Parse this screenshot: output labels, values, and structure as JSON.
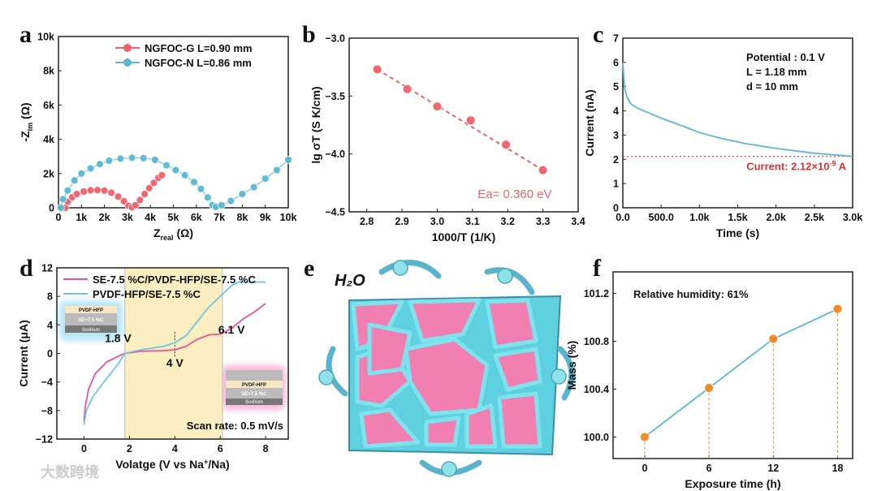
{
  "colors": {
    "red": "#f0626a",
    "blue": "#5bb8d4",
    "pink": "#ec4f9b",
    "lightblue": "#6cc6e6",
    "orange": "#f4841f",
    "shade": "#fbeec0",
    "dash_red": "#e23030"
  },
  "watermark": "大数跨境",
  "chart_data": [
    {
      "panel": "a",
      "type": "scatter",
      "xlabel": "Z",
      "xlabel_sub": "real",
      "xlabel_unit": " (Ω)",
      "ylabel": "-Z",
      "ylabel_sub": "im",
      "ylabel_unit": " (Ω)",
      "xlim": [
        0,
        10000
      ],
      "ylim": [
        0,
        10000
      ],
      "xticks": [
        [
          0,
          "0"
        ],
        [
          1000,
          "1k"
        ],
        [
          2000,
          "2k"
        ],
        [
          3000,
          "3k"
        ],
        [
          4000,
          "4k"
        ],
        [
          5000,
          "5k"
        ],
        [
          6000,
          "6k"
        ],
        [
          7000,
          "7k"
        ],
        [
          8000,
          "8k"
        ],
        [
          9000,
          "9k"
        ],
        [
          10000,
          "10k"
        ]
      ],
      "yticks": [
        [
          0,
          "0"
        ],
        [
          2000,
          "2k"
        ],
        [
          4000,
          "4k"
        ],
        [
          6000,
          "6k"
        ],
        [
          8000,
          "8k"
        ],
        [
          10000,
          "10k"
        ]
      ],
      "legend": "top-right",
      "series": [
        {
          "name": "NGFOC-G  L=0.90 mm",
          "color": "#f0626a",
          "points": [
            [
              300,
              0
            ],
            [
              400,
              350
            ],
            [
              600,
              620
            ],
            [
              800,
              800
            ],
            [
              1100,
              950
            ],
            [
              1400,
              1020
            ],
            [
              1700,
              1030
            ],
            [
              2000,
              1000
            ],
            [
              2300,
              880
            ],
            [
              2600,
              650
            ],
            [
              2850,
              380
            ],
            [
              3050,
              120
            ],
            [
              3200,
              30
            ],
            [
              3350,
              150
            ],
            [
              3550,
              450
            ],
            [
              3750,
              800
            ],
            [
              3950,
              1150
            ],
            [
              4150,
              1450
            ],
            [
              4350,
              1750
            ],
            [
              4500,
              1900
            ]
          ]
        },
        {
          "name": "NGFOC-N  L=0.86 mm",
          "color": "#5bb8d4",
          "points": [
            [
              100,
              0
            ],
            [
              200,
              500
            ],
            [
              400,
              1000
            ],
            [
              700,
              1600
            ],
            [
              1000,
              2000
            ],
            [
              1400,
              2300
            ],
            [
              1800,
              2550
            ],
            [
              2200,
              2750
            ],
            [
              2700,
              2870
            ],
            [
              3200,
              2920
            ],
            [
              3700,
              2900
            ],
            [
              4200,
              2800
            ],
            [
              4700,
              2480
            ],
            [
              5100,
              2200
            ],
            [
              5500,
              1900
            ],
            [
              5900,
              1500
            ],
            [
              6200,
              1100
            ],
            [
              6500,
              600
            ],
            [
              6700,
              150
            ],
            [
              6850,
              50
            ],
            [
              7100,
              150
            ],
            [
              7500,
              400
            ],
            [
              8000,
              800
            ],
            [
              8500,
              1200
            ],
            [
              9000,
              1700
            ],
            [
              9500,
              2200
            ],
            [
              10000,
              2800
            ]
          ]
        }
      ]
    },
    {
      "panel": "b",
      "type": "scatter",
      "xlabel": "1000/T (1/K)",
      "ylabel": "lg σT (S K/cm)",
      "xlim": [
        2.75,
        3.4
      ],
      "ylim": [
        -4.5,
        -3.0
      ],
      "xticks": [
        [
          2.8,
          "2.8"
        ],
        [
          2.9,
          "2.9"
        ],
        [
          3.0,
          "3.0"
        ],
        [
          3.1,
          "3.1"
        ],
        [
          3.2,
          "3.2"
        ],
        [
          3.3,
          "3.3"
        ],
        [
          3.4,
          "3.4"
        ]
      ],
      "yticks": [
        [
          -3.0,
          "−3.0"
        ],
        [
          -3.5,
          "−3.5"
        ],
        [
          -4.0,
          "−4.0"
        ],
        [
          -4.5,
          "−4.5"
        ]
      ],
      "annotation": "Ea= 0.360 eV",
      "series": [
        {
          "name": "data",
          "color": "#f0626a",
          "points": [
            [
              2.83,
              -3.27
            ],
            [
              2.915,
              -3.44
            ],
            [
              3.0,
              -3.59
            ],
            [
              3.095,
              -3.71
            ],
            [
              3.195,
              -3.92
            ],
            [
              3.3,
              -4.14
            ]
          ]
        }
      ],
      "fit": [
        [
          2.83,
          -3.27
        ],
        [
          3.3,
          -4.14
        ]
      ]
    },
    {
      "panel": "c",
      "type": "line",
      "xlabel": "Time (s)",
      "ylabel": "Current (nA)",
      "xlim": [
        0,
        3000
      ],
      "ylim": [
        0,
        7
      ],
      "xticks": [
        [
          0,
          "0.0"
        ],
        [
          500,
          "500.0"
        ],
        [
          1000,
          "1.0k"
        ],
        [
          1500,
          "1.5k"
        ],
        [
          2000,
          "2.0k"
        ],
        [
          2500,
          "2.5k"
        ],
        [
          3000,
          "3.0k"
        ]
      ],
      "yticks": [
        [
          0,
          "0"
        ],
        [
          1,
          "1"
        ],
        [
          2,
          "2"
        ],
        [
          3,
          "3"
        ],
        [
          4,
          "4"
        ],
        [
          5,
          "5"
        ],
        [
          6,
          "6"
        ],
        [
          7,
          "7"
        ]
      ],
      "info": [
        "Potential : 0.1 V",
        "L = 1.18 mm",
        "d = 10 mm"
      ],
      "annotation": "Current: 2.12×10",
      "annotation_exp": "-9",
      "annotation_unit": " A",
      "reference_y": 2.12,
      "series": [
        {
          "name": "current",
          "color": "#5bb8d4",
          "points": [
            [
              0,
              6.0
            ],
            [
              20,
              5.0
            ],
            [
              50,
              4.6
            ],
            [
              100,
              4.3
            ],
            [
              200,
              4.1
            ],
            [
              350,
              3.9
            ],
            [
              500,
              3.7
            ],
            [
              800,
              3.35
            ],
            [
              1000,
              3.1
            ],
            [
              1300,
              2.85
            ],
            [
              1600,
              2.65
            ],
            [
              2000,
              2.45
            ],
            [
              2500,
              2.25
            ],
            [
              3000,
              2.12
            ]
          ]
        }
      ]
    },
    {
      "panel": "d",
      "type": "line",
      "xlabel": "Volatge (V vs Na",
      "xlabel_sup": "+",
      "xlabel_end": "/Na)",
      "ylabel": "Current (μA)",
      "xlim": [
        -1.2,
        9.0
      ],
      "ylim": [
        -12,
        12
      ],
      "xticks": [
        [
          0,
          "0"
        ],
        [
          2,
          "2"
        ],
        [
          4,
          "4"
        ],
        [
          6,
          "6"
        ],
        [
          8,
          "8"
        ]
      ],
      "yticks": [
        [
          -12,
          "−12"
        ],
        [
          -8,
          "−8"
        ],
        [
          -4,
          "−4"
        ],
        [
          0,
          "0"
        ],
        [
          4,
          "4"
        ],
        [
          8,
          "8"
        ],
        [
          12,
          "12"
        ]
      ],
      "shaded_range": [
        1.8,
        6.1
      ],
      "annotations": [
        {
          "text": "1.8 V",
          "x": 1.5,
          "y": 1.6
        },
        {
          "text": "4 V",
          "x": 4.0,
          "y": -1.9
        },
        {
          "text": "6.1 V",
          "x": 6.5,
          "y": 2.8
        }
      ],
      "marker_x": 4.0,
      "scan_rate": "Scan rate: 0.5 mV/s",
      "inset_labels": {
        "pvdf": "PVDF-HFP",
        "se": "SE+7.5 %C",
        "sodium": "Sodium"
      },
      "series": [
        {
          "name": "SE-7.5 %C/PVDF-HFP/SE-7.5 %C",
          "color": "#ec4f9b",
          "points": [
            [
              0,
              -9.5
            ],
            [
              0.05,
              -7.5
            ],
            [
              0.2,
              -5
            ],
            [
              0.5,
              -2.8
            ],
            [
              1,
              -1.2
            ],
            [
              1.5,
              -0.4
            ],
            [
              1.8,
              0
            ],
            [
              2.5,
              0.3
            ],
            [
              3.5,
              0.4
            ],
            [
              4,
              0.5
            ],
            [
              4.5,
              1
            ],
            [
              5,
              2
            ],
            [
              5.5,
              2.6
            ],
            [
              6,
              2.7
            ],
            [
              6.5,
              3.5
            ],
            [
              7,
              4.8
            ],
            [
              7.5,
              5.8
            ],
            [
              8,
              7
            ]
          ]
        },
        {
          "name": "PVDF-HFP/SE-7.5 %C",
          "color": "#6cc6e6",
          "points": [
            [
              0,
              -10
            ],
            [
              0.1,
              -8
            ],
            [
              0.4,
              -6
            ],
            [
              1,
              -3.5
            ],
            [
              1.5,
              -1.5
            ],
            [
              1.8,
              0
            ],
            [
              2.5,
              0.5
            ],
            [
              3.5,
              1
            ],
            [
              4,
              1.5
            ],
            [
              4.5,
              2.5
            ],
            [
              5,
              4.5
            ],
            [
              5.5,
              6.5
            ],
            [
              6,
              8
            ],
            [
              6.5,
              9.5
            ],
            [
              6.8,
              10
            ],
            [
              8,
              10
            ]
          ]
        }
      ]
    },
    {
      "panel": "f",
      "type": "line",
      "xlabel": "Exposure time (h)",
      "ylabel": "Mass (%)",
      "xlim": [
        -2.95,
        19.4
      ],
      "ylim": [
        99.82,
        101.38
      ],
      "xticks": [
        [
          0,
          "0"
        ],
        [
          6,
          "6"
        ],
        [
          12,
          "12"
        ],
        [
          18,
          "18"
        ]
      ],
      "yticks": [
        [
          100.0,
          "100.0"
        ],
        [
          100.4,
          "100.4"
        ],
        [
          100.8,
          "100.8"
        ],
        [
          101.2,
          "101.2"
        ]
      ],
      "annotation": "Relative humidity: 61%",
      "series": [
        {
          "name": "mass",
          "color": "#5bb8d4",
          "marker_color": "#f4841f",
          "points": [
            [
              0,
              100.0
            ],
            [
              6,
              100.41
            ],
            [
              12,
              100.82
            ],
            [
              18,
              101.07
            ]
          ]
        }
      ]
    }
  ],
  "illustration": {
    "label": "H₂O"
  },
  "panel_labels": [
    "a",
    "b",
    "c",
    "d",
    "e",
    "f"
  ]
}
